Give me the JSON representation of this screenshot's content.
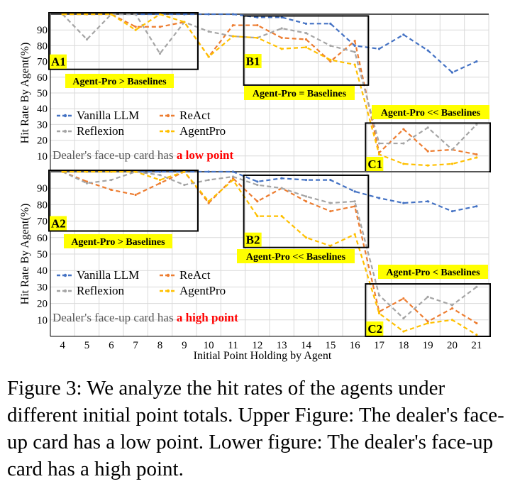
{
  "chart_data": [
    {
      "type": "line",
      "title": "",
      "xlabel": "",
      "ylabel": "Hit Rate By Agent(%)",
      "ylim": [
        0,
        100
      ],
      "yticks": [
        10,
        20,
        30,
        40,
        50,
        60,
        70,
        80,
        90
      ],
      "x": [
        4,
        5,
        6,
        7,
        8,
        9,
        10,
        11,
        12,
        13,
        14,
        15,
        16,
        17,
        18,
        19,
        20,
        21
      ],
      "grid": true,
      "legend_position": "left-middle",
      "series": [
        {
          "name": "Vanilla LLM",
          "color": "#4472C4",
          "values": [
            100,
            100,
            100,
            100,
            100,
            100,
            100,
            100,
            98,
            98,
            94,
            94,
            80,
            78,
            87,
            77,
            63,
            70
          ]
        },
        {
          "name": "ReAct",
          "color": "#ED7D31",
          "values": [
            100,
            100,
            100,
            92,
            92,
            95,
            73,
            93,
            93,
            85,
            84,
            70,
            83,
            12,
            27,
            13,
            14,
            11
          ]
        },
        {
          "name": "Reflexion",
          "color": "#A5A5A5",
          "values": [
            100,
            84,
            100,
            100,
            75,
            95,
            89,
            86,
            85,
            91,
            88,
            80,
            76,
            18,
            18,
            28,
            14,
            30
          ]
        },
        {
          "name": "AgentPro",
          "color": "#FFC000",
          "values": [
            100,
            100,
            100,
            90,
            100,
            95,
            73,
            86,
            85,
            78,
            79,
            71,
            68,
            11,
            5,
            4,
            5,
            9
          ]
        }
      ],
      "annotations": {
        "note_prefix": "Dealer's face-up card has ",
        "note_highlight": "a low point",
        "box_labels": [
          "A1",
          "B1",
          "C1"
        ],
        "callouts": [
          "Agent-Pro > Baselines",
          "Agent-Pro = Baselines",
          "Agent-Pro << Baselines"
        ]
      }
    },
    {
      "type": "line",
      "title": "",
      "xlabel": "Initial Point Holding by Agent",
      "ylabel": "Hit Rate By Agent(%)",
      "ylim": [
        0,
        100
      ],
      "yticks": [
        10,
        20,
        30,
        40,
        50,
        60,
        70,
        80,
        90
      ],
      "x": [
        4,
        5,
        6,
        7,
        8,
        9,
        10,
        11,
        12,
        13,
        14,
        15,
        16,
        17,
        18,
        19,
        20,
        21
      ],
      "grid": true,
      "legend_position": "left-middle",
      "series": [
        {
          "name": "Vanilla LLM",
          "color": "#4472C4",
          "values": [
            100,
            100,
            100,
            100,
            100,
            100,
            100,
            100,
            94,
            96,
            95,
            95,
            88,
            84,
            81,
            82,
            76,
            79
          ]
        },
        {
          "name": "ReAct",
          "color": "#ED7D31",
          "values": [
            100,
            94,
            89,
            86,
            93,
            100,
            81,
            96,
            82,
            90,
            82,
            76,
            79,
            15,
            23,
            9,
            17,
            8
          ]
        },
        {
          "name": "Reflexion",
          "color": "#A5A5A5",
          "values": [
            100,
            93,
            95,
            100,
            98,
            92,
            95,
            97,
            92,
            90,
            85,
            81,
            82,
            25,
            11,
            24,
            19,
            30
          ]
        },
        {
          "name": "AgentPro",
          "color": "#FFC000",
          "values": [
            100,
            100,
            100,
            100,
            95,
            100,
            82,
            95,
            73,
            73,
            60,
            55,
            62,
            14,
            3,
            8,
            10,
            1
          ]
        }
      ],
      "annotations": {
        "note_prefix": "Dealer's face-up card has ",
        "note_highlight": "a high point",
        "box_labels": [
          "A2",
          "B2",
          "C2"
        ],
        "callouts": [
          "Agent-Pro > Baselines",
          "Agent-Pro << Baselines",
          "Agent-Pro < Baselines"
        ]
      }
    }
  ],
  "caption": "Figure 3: We analyze the hit rates of the agents under different initial point totals. Upper Figure: The dealer's face-up card has a low point. Lower figure: The dealer's face-up card has a high point."
}
